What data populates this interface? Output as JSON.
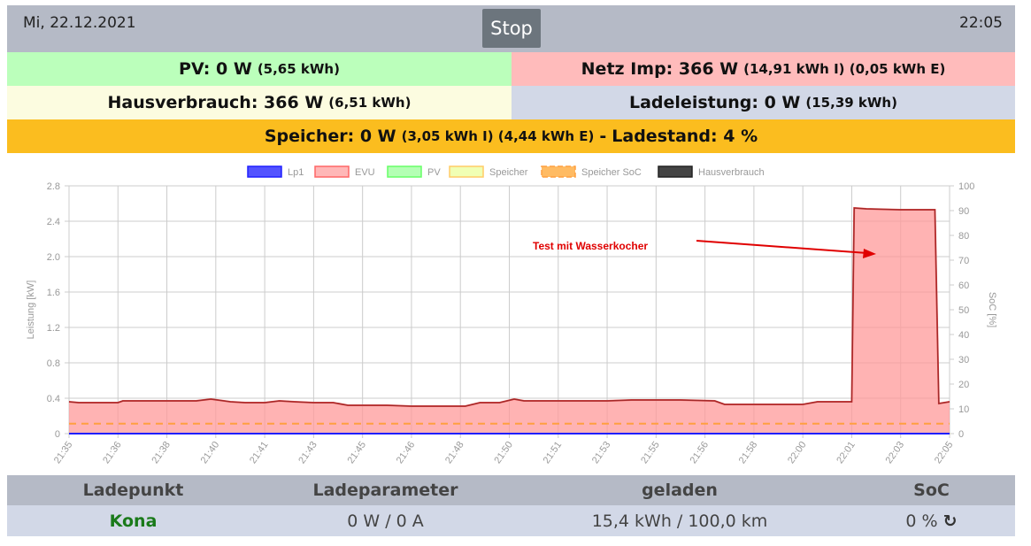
{
  "header": {
    "date": "Mi, 22.12.2021",
    "time": "22:05",
    "stop_label": "Stop"
  },
  "summary": {
    "pv": {
      "main": "PV: 0 W",
      "detail": "(5,65 kWh)",
      "color": "#bbffbb"
    },
    "netz": {
      "main": "Netz Imp: 366 W",
      "detail": "(14,91 kWh I) (0,05 kWh E)",
      "color": "#ffbbbb"
    },
    "haus": {
      "main": "Hausverbrauch: 366 W",
      "detail": "(6,51 kWh)",
      "color": "#fcfce0"
    },
    "lade": {
      "main": "Ladeleistung: 0 W",
      "detail": "(15,39 kWh)",
      "color": "#d2d8e7"
    },
    "speicher": {
      "main": "Speicher: 0 W",
      "detail": "(3,05 kWh I) (4,44 kWh E)",
      "sep": "-",
      "ladestand": "Ladestand: 4 %",
      "color": "#fbbd1f"
    }
  },
  "chart_data": {
    "type": "line",
    "legend": [
      "Lp1",
      "EVU",
      "PV",
      "Speicher",
      "Speicher SoC",
      "Hausverbrauch"
    ],
    "legend_placement": "top",
    "ylabel": "Leistung [kW]",
    "y2label": "SoC [%]",
    "ylim": [
      0,
      2.8
    ],
    "yticks": [
      "0",
      "0.4",
      "0.8",
      "1.2",
      "1.6",
      "2.0",
      "2.4",
      "2.8"
    ],
    "y2lim": [
      0,
      100
    ],
    "y2ticks": [
      "0",
      "10",
      "20",
      "30",
      "40",
      "50",
      "60",
      "70",
      "80",
      "90",
      "100"
    ],
    "xticks": [
      "21:35",
      "21:36",
      "21:38",
      "21:40",
      "21:41",
      "21:43",
      "21:45",
      "21:46",
      "21:48",
      "21:50",
      "21:51",
      "21:53",
      "21:55",
      "21:56",
      "21:58",
      "22:00",
      "22:01",
      "22:03",
      "22:05"
    ],
    "evu": [
      [
        0,
        0.36
      ],
      [
        0.2,
        0.35
      ],
      [
        1,
        0.35
      ],
      [
        1.1,
        0.37
      ],
      [
        2,
        0.37
      ],
      [
        2.6,
        0.37
      ],
      [
        2.9,
        0.39
      ],
      [
        3.3,
        0.36
      ],
      [
        3.6,
        0.35
      ],
      [
        4,
        0.35
      ],
      [
        4.3,
        0.37
      ],
      [
        4.6,
        0.36
      ],
      [
        5,
        0.35
      ],
      [
        5.4,
        0.35
      ],
      [
        5.7,
        0.32
      ],
      [
        6.5,
        0.32
      ],
      [
        7,
        0.31
      ],
      [
        8.1,
        0.31
      ],
      [
        8.4,
        0.35
      ],
      [
        8.8,
        0.35
      ],
      [
        9.1,
        0.39
      ],
      [
        9.3,
        0.37
      ],
      [
        10,
        0.37
      ],
      [
        11,
        0.37
      ],
      [
        11.5,
        0.38
      ],
      [
        12.5,
        0.38
      ],
      [
        13.2,
        0.37
      ],
      [
        13.4,
        0.33
      ],
      [
        14.5,
        0.33
      ],
      [
        15,
        0.33
      ],
      [
        15.3,
        0.36
      ],
      [
        16,
        0.36
      ],
      [
        16.05,
        2.55
      ],
      [
        16.3,
        2.54
      ],
      [
        17,
        2.53
      ],
      [
        17.7,
        2.53
      ],
      [
        17.78,
        0.34
      ],
      [
        18,
        0.36
      ]
    ],
    "lp1": 0,
    "pv": 0,
    "speicher_soc": 4,
    "annotation": "Test mit Wasserkocher",
    "colors": {
      "lp1": "#2020ff",
      "evu": "#ff9999",
      "pv": "#66ff66",
      "speicher": "#ffcc66",
      "soc": "#ffa040",
      "haus": "#333333"
    }
  },
  "table": {
    "headers": [
      "Ladepunkt",
      "Ladeparameter",
      "geladen",
      "SoC"
    ],
    "row": {
      "name": "Kona",
      "param": "0 W / 0 A",
      "geladen": "15,4 kWh / 100,0 km",
      "soc": "0 %"
    }
  }
}
